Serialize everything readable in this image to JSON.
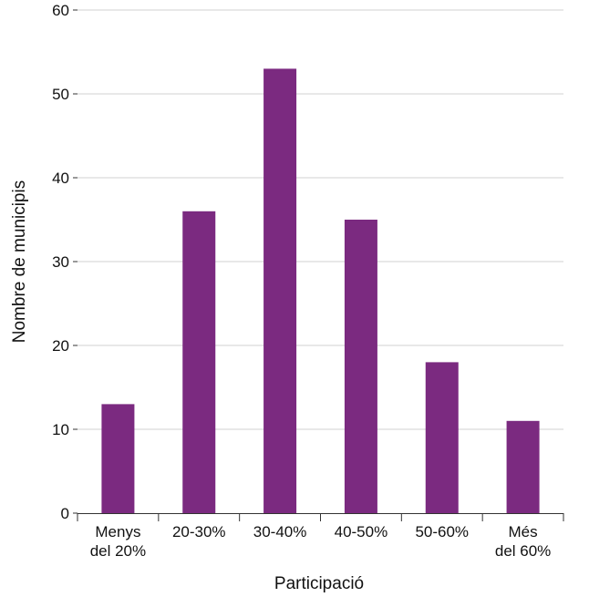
{
  "chart_data": {
    "type": "bar",
    "categories": [
      [
        "Menys",
        "del 20%"
      ],
      [
        "20-30%"
      ],
      [
        "30-40%"
      ],
      [
        "40-50%"
      ],
      [
        "50-60%"
      ],
      [
        "Més",
        "del 60%"
      ]
    ],
    "values": [
      13,
      36,
      53,
      35,
      18,
      11
    ],
    "xlabel": "Participació",
    "ylabel": "Nombre de municipis",
    "ylim": [
      0,
      60
    ],
    "yticks": [
      0,
      10,
      20,
      30,
      40,
      50,
      60
    ],
    "grid": true,
    "bar_color": "#7b2a80",
    "grid_color": "#d0d0d0",
    "axis_color": "#333333"
  }
}
